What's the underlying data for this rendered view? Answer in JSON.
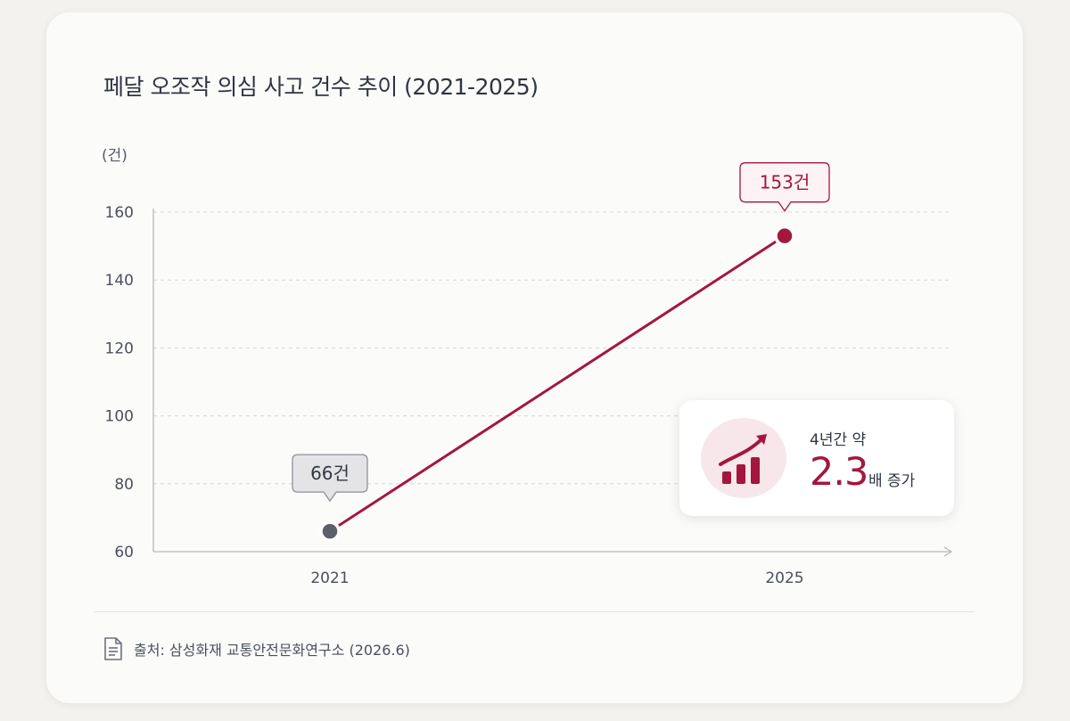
{
  "title": "페달 오조작 의심 사고 건수 추이 (2021-2025)",
  "unit_label": "(건)",
  "colors": {
    "accent": "#a3173f",
    "start_point": "#5c6068",
    "grid": "#d8d8d8",
    "axis": "#b8b8b8"
  },
  "chart_data": {
    "type": "line",
    "title": "페달 오조작 의심 사고 건수 추이 (2021-2025)",
    "ylabel": "(건)",
    "xlabel": "",
    "categories": [
      "2021",
      "2025"
    ],
    "series": [
      {
        "values": [
          66,
          153
        ]
      }
    ],
    "data_labels": [
      "66건",
      "153건"
    ],
    "ylim": [
      60,
      160
    ],
    "yticks": [
      60,
      80,
      100,
      120,
      140,
      160
    ],
    "grid": true
  },
  "callout": {
    "line1": "4년간 약",
    "value": "2.3",
    "suffix": "배 증가",
    "icon": "rising-bar-chart-icon"
  },
  "source": {
    "icon": "document-icon",
    "text": "출처: 삼성화재 교통안전문화연구소 (2026.6)"
  }
}
